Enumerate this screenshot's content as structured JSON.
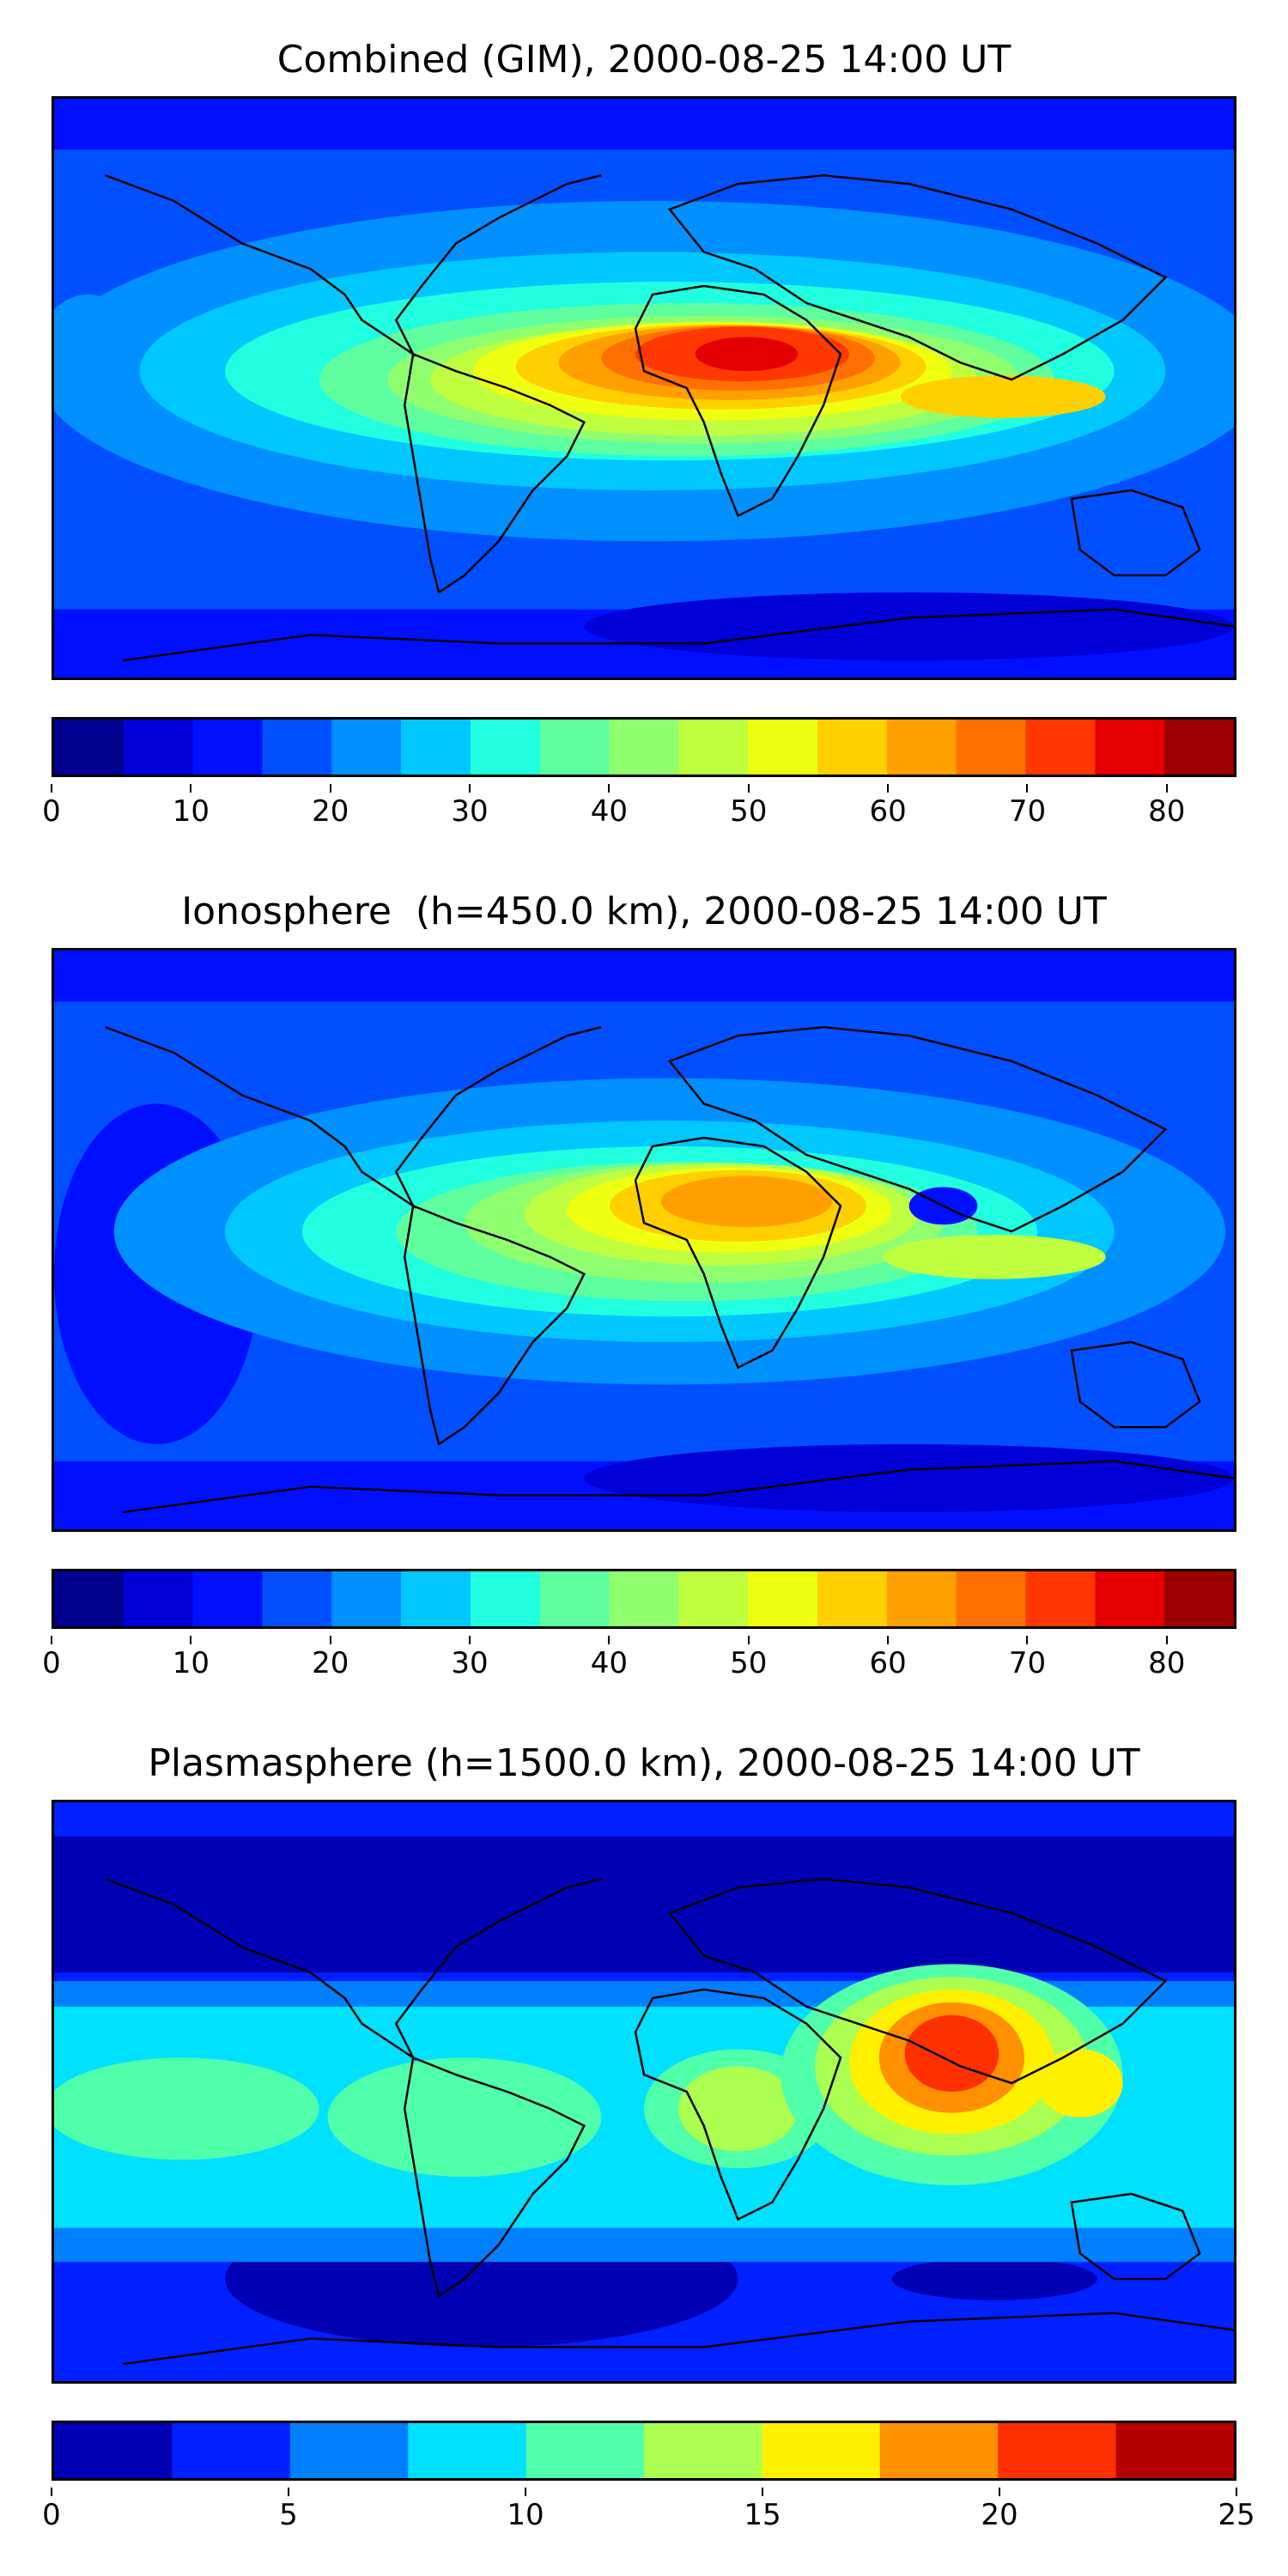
{
  "panels": [
    {
      "title": "Combined (GIM), 2000-08-25 14:00 UT",
      "colorbar": {
        "min": 0,
        "max": 85,
        "step": 5,
        "ticks": [
          "0",
          "10",
          "20",
          "30",
          "40",
          "50",
          "60",
          "70",
          "80"
        ],
        "colors": [
          "#00008f",
          "#0000d8",
          "#0010ff",
          "#0050ff",
          "#0090ff",
          "#00c8ff",
          "#20ffdf",
          "#5fffa0",
          "#8fff70",
          "#bfff40",
          "#efff10",
          "#ffd000",
          "#ffa000",
          "#ff7000",
          "#ff3800",
          "#e40000",
          "#9c0000"
        ]
      }
    },
    {
      "title": "Ionosphere  (h=450.0 km), 2000-08-25 14:00 UT",
      "colorbar": {
        "min": 0,
        "max": 85,
        "step": 5,
        "ticks": [
          "0",
          "10",
          "20",
          "30",
          "40",
          "50",
          "60",
          "70",
          "80"
        ],
        "colors": [
          "#00008f",
          "#0000d8",
          "#0010ff",
          "#0050ff",
          "#0090ff",
          "#00c8ff",
          "#20ffdf",
          "#5fffa0",
          "#8fff70",
          "#bfff40",
          "#efff10",
          "#ffd000",
          "#ffa000",
          "#ff7000",
          "#ff3800",
          "#e40000",
          "#9c0000"
        ]
      }
    },
    {
      "title": "Plasmasphere (h=1500.0 km), 2000-08-25 14:00 UT",
      "colorbar": {
        "min": 0,
        "max": 25,
        "step": 2.5,
        "ticks": [
          "0",
          "5",
          "10",
          "15",
          "20",
          "25"
        ],
        "colors": [
          "#0000b4",
          "#0020ff",
          "#0080ff",
          "#00e0ff",
          "#50ffaa",
          "#aaff50",
          "#fff000",
          "#ff9000",
          "#ff3000",
          "#b40000"
        ]
      }
    }
  ]
}
